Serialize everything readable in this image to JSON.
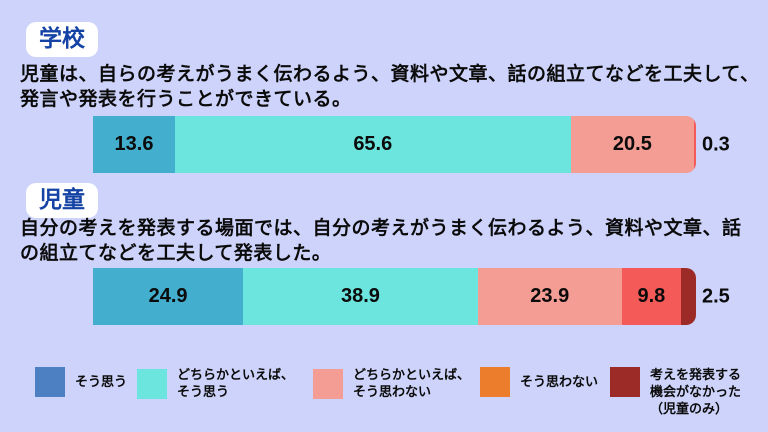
{
  "page": {
    "background": "#CDD3FA"
  },
  "sections": [
    {
      "badge": "学校",
      "question": "児童は、自らの考えがうまく伝わるよう、資料や文章、話の組立てなどを工夫して、\n発言や発表を行うことができている。"
    },
    {
      "badge": "児童",
      "question": "自分の考えを発表する場面では、自分の考えがうまく伝わるよう、資料や文章、話\nの組立てなどを工夫して発表した。"
    }
  ],
  "chart_data": {
    "type": "bar",
    "orientation": "horizontal-stacked",
    "unit": "percent",
    "xlim": [
      0,
      100
    ],
    "categories": [
      "そう思う",
      "どちらかといえば、そう思う",
      "どちらかといえば、そう思わない",
      "そう思わない",
      "考えを発表する機会がなかった（児童のみ）"
    ],
    "series": [
      {
        "name": "学校",
        "values": [
          13.6,
          65.6,
          20.5,
          0.3,
          null
        ]
      },
      {
        "name": "児童",
        "values": [
          24.9,
          38.9,
          23.9,
          9.8,
          2.5
        ]
      }
    ],
    "bar_colors": [
      "#43AECE",
      "#6BE5DE",
      "#F49D95",
      "#F45A58",
      "#9C2B28"
    ],
    "legend_position": "bottom"
  },
  "legend": {
    "items": [
      {
        "label": "そう思う",
        "color": "#4C80C3"
      },
      {
        "label": "どちらかといえば、\nそう思う",
        "color": "#6BE5DE"
      },
      {
        "label": "どちらかといえば、\nそう思わない",
        "color": "#F49D95"
      },
      {
        "label": "そう思わない",
        "color": "#EC7D2D"
      },
      {
        "label": "考えを発表する\n機会がなかった\n（児童のみ）",
        "color": "#9C2B28"
      }
    ]
  }
}
